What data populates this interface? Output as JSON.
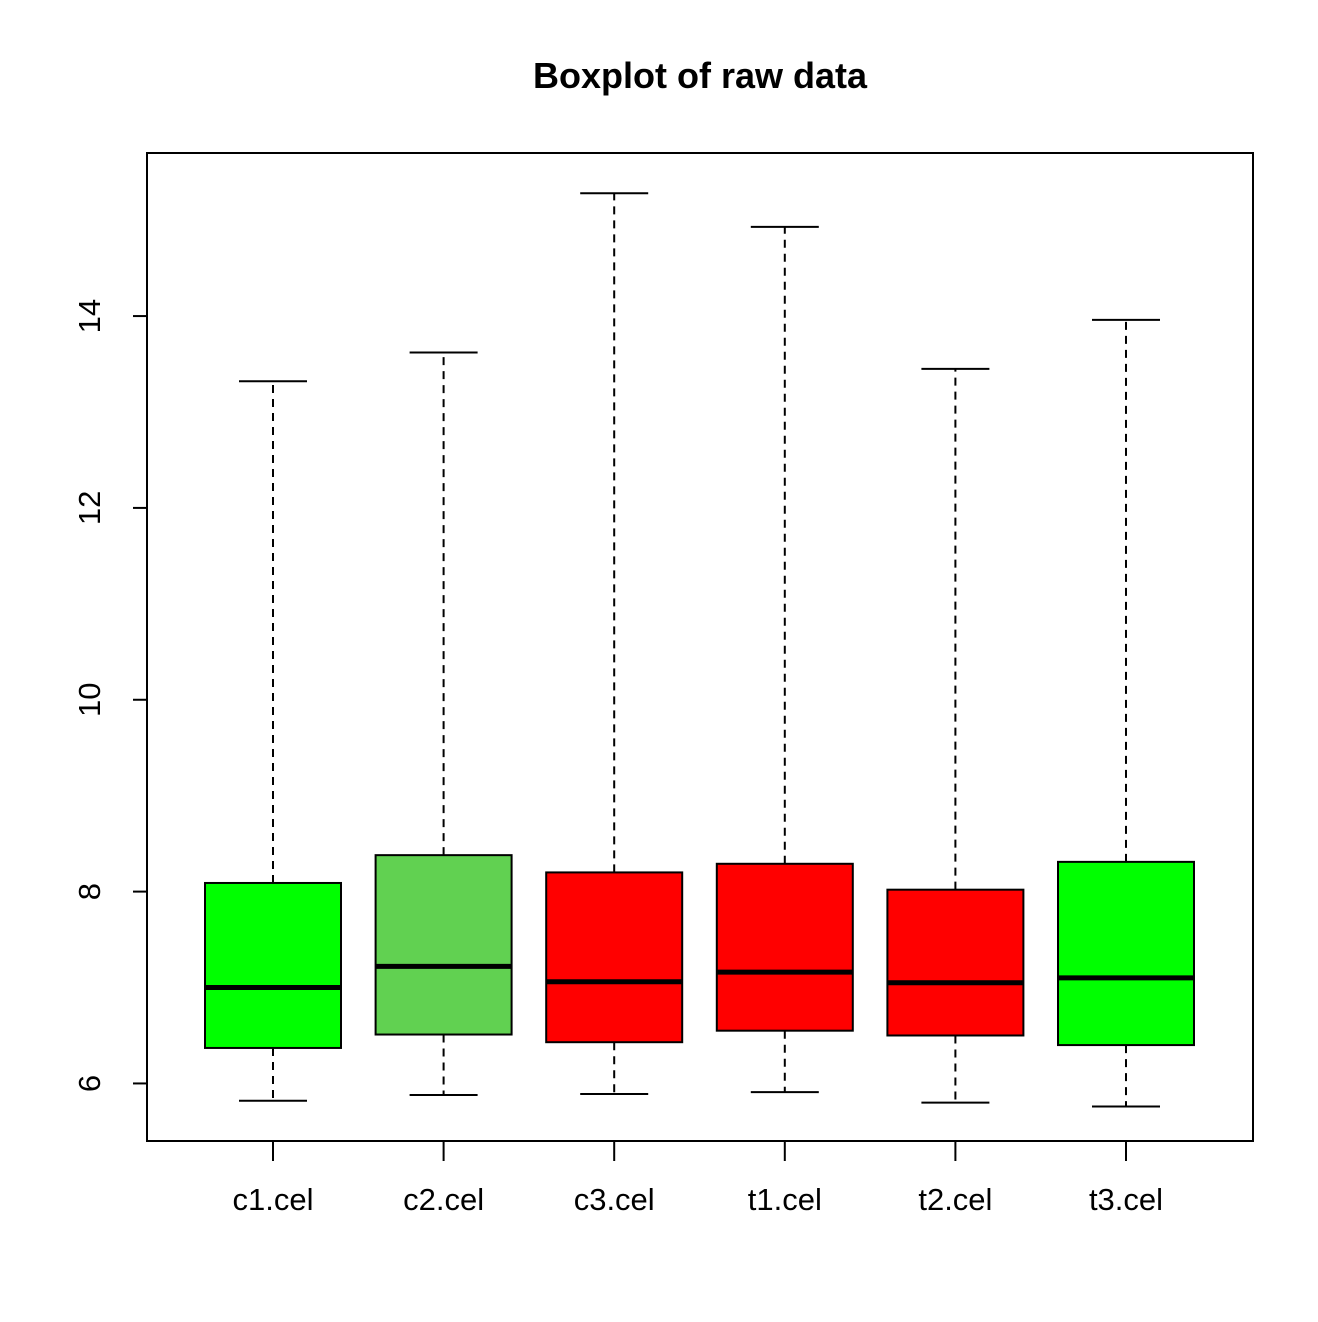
{
  "chart_data": {
    "type": "boxplot",
    "title": "Boxplot of raw data",
    "xlabel": "",
    "ylabel": "",
    "ylim": [
      5.4,
      15.7
    ],
    "yticks": [
      6,
      8,
      10,
      12,
      14
    ],
    "grid": false,
    "categories": [
      "c1.cel",
      "c2.cel",
      "c3.cel",
      "t1.cel",
      "t2.cel",
      "t3.cel"
    ],
    "boxes": [
      {
        "label": "c1.cel",
        "min": 5.82,
        "q1": 6.37,
        "median": 7.0,
        "q3": 8.09,
        "max": 13.32,
        "color": "#00ff00"
      },
      {
        "label": "c2.cel",
        "min": 5.88,
        "q1": 6.51,
        "median": 7.22,
        "q3": 8.38,
        "max": 13.62,
        "color": "#61d151"
      },
      {
        "label": "c3.cel",
        "min": 5.89,
        "q1": 6.43,
        "median": 7.06,
        "q3": 8.2,
        "max": 15.28,
        "color": "#ff0000"
      },
      {
        "label": "t1.cel",
        "min": 5.91,
        "q1": 6.55,
        "median": 7.16,
        "q3": 8.29,
        "max": 14.93,
        "color": "#ff0000"
      },
      {
        "label": "t2.cel",
        "min": 5.8,
        "q1": 6.5,
        "median": 7.05,
        "q3": 8.02,
        "max": 13.45,
        "color": "#ff0000"
      },
      {
        "label": "t3.cel",
        "min": 5.76,
        "q1": 6.4,
        "median": 7.1,
        "q3": 8.31,
        "max": 13.96,
        "color": "#00ff00"
      }
    ]
  }
}
